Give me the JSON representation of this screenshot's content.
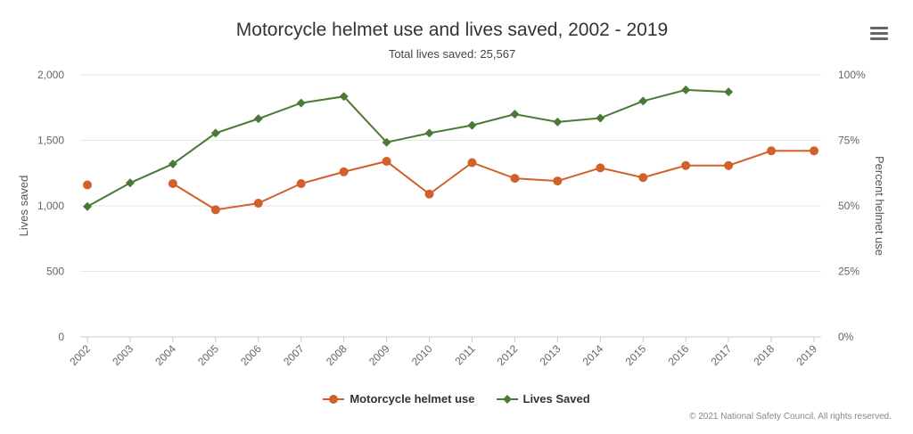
{
  "chart_data": {
    "type": "line",
    "title": "Motorcycle helmet use and lives saved, 2002 - 2019",
    "subtitle": "Total lives saved: 25,567",
    "x": [
      "2002",
      "2003",
      "2004",
      "2005",
      "2006",
      "2007",
      "2008",
      "2009",
      "2010",
      "2011",
      "2012",
      "2013",
      "2014",
      "2015",
      "2016",
      "2017",
      "2018",
      "2019"
    ],
    "y_left": {
      "label": "Lives saved",
      "range": [
        0,
        2000
      ],
      "ticks": [
        "0",
        "500",
        "1,000",
        "1,500",
        "2,000"
      ]
    },
    "y_right": {
      "label": "Percent helmet use",
      "range": [
        0,
        100
      ],
      "ticks": [
        "0%",
        "25%",
        "50%",
        "75%",
        "100%"
      ]
    },
    "series": [
      {
        "name": "Motorcycle helmet use",
        "axis": "right",
        "color": "#d35f2a",
        "marker": "circle",
        "values": [
          58,
          null,
          58.5,
          48.5,
          51,
          58.5,
          63,
          67,
          54.5,
          66.5,
          60.5,
          59.5,
          64.5,
          60.8,
          65.4,
          65.4,
          71,
          71
        ]
      },
      {
        "name": "Lives Saved",
        "axis": "left",
        "color": "#4a7a36",
        "marker": "diamond",
        "values": [
          995,
          1175,
          1320,
          1555,
          1665,
          1785,
          1835,
          1485,
          1555,
          1615,
          1700,
          1640,
          1670,
          1800,
          1885,
          1870,
          null,
          null
        ]
      }
    ],
    "grid": true,
    "legend_position": "bottom-center"
  },
  "menu_icon": "hamburger-icon",
  "credit": "© 2021 National Safety Council. All rights reserved."
}
